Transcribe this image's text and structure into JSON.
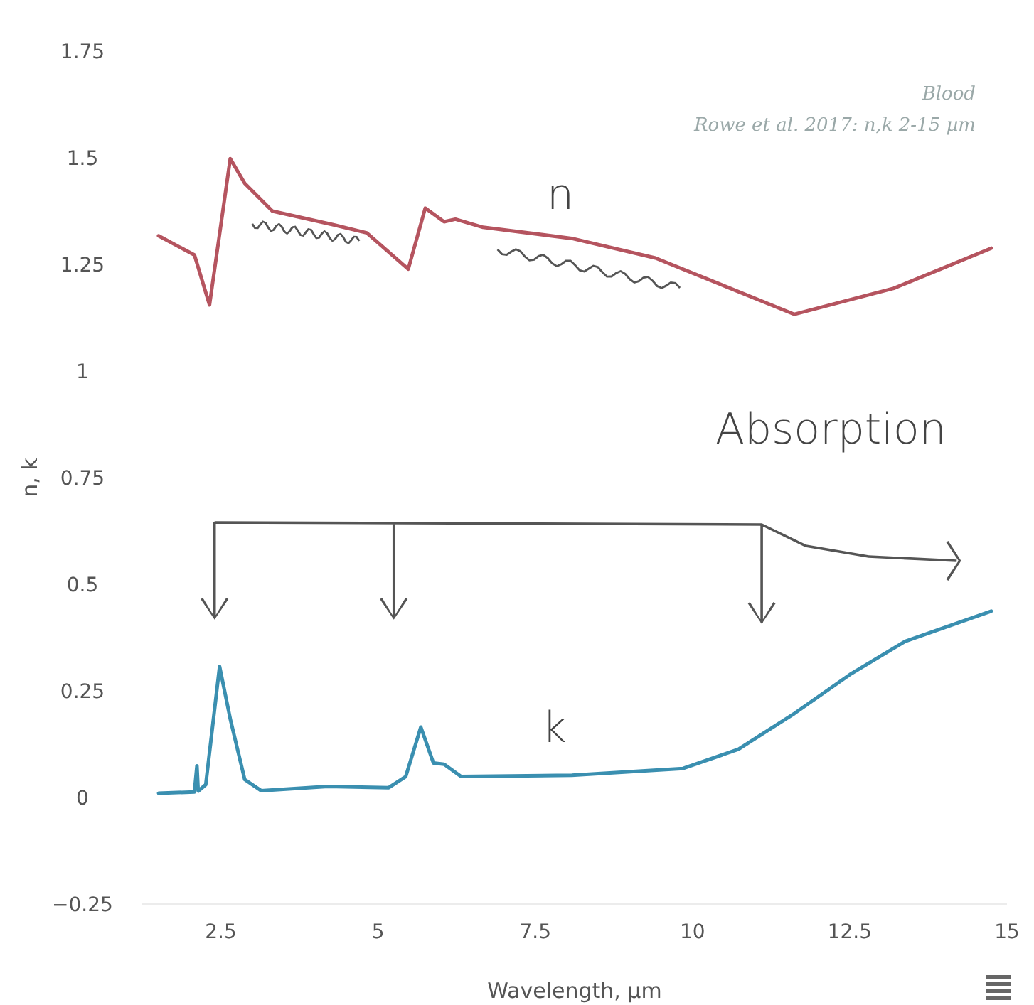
{
  "chart_data": {
    "type": "line",
    "xlabel": "Wavelength, µm",
    "ylabel": "n, k",
    "xlim": [
      1.25,
      15
    ],
    "ylim": [
      -0.25,
      1.75
    ],
    "xticks": [
      {
        "value": 2.5,
        "label": "2.5"
      },
      5,
      {
        "value": 7.5,
        "label": "7.5"
      },
      10,
      {
        "value": 12.5,
        "label": "12.5"
      },
      15
    ],
    "yticks": [
      {
        "value": -0.25,
        "label": "−0.25"
      },
      0,
      {
        "value": 0.25,
        "label": "0.25"
      },
      {
        "value": 0.5,
        "label": "0.5"
      },
      {
        "value": 0.75,
        "label": "0.75"
      },
      1,
      {
        "value": 1.25,
        "label": "1.25"
      },
      {
        "value": 1.5,
        "label": "1.5"
      },
      {
        "value": 1.75,
        "label": "1.75"
      }
    ],
    "grid": false,
    "marker": "none",
    "line_style": "solid",
    "series": [
      {
        "color": "#b5545f",
        "x": [
          1.51,
          2.08,
          2.32,
          2.65,
          2.88,
          3.32,
          4.29,
          4.82,
          5.48,
          5.75,
          6.05,
          6.23,
          6.67,
          8.08,
          9.41,
          11.62,
          13.2,
          14.75
        ],
        "values": [
          1.317,
          1.272,
          1.155,
          1.498,
          1.44,
          1.375,
          1.343,
          1.324,
          1.239,
          1.382,
          1.35,
          1.356,
          1.337,
          1.311,
          1.265,
          1.133,
          1.194,
          1.288
        ]
      },
      {
        "color": "#3a8fb0",
        "x": [
          1.51,
          2.08,
          2.12,
          2.14,
          2.26,
          2.48,
          2.65,
          2.88,
          3.14,
          4.2,
          5.17,
          5.44,
          5.68,
          5.88,
          6.05,
          6.32,
          8.08,
          9.85,
          10.73,
          11.62,
          12.5,
          13.38,
          14.75
        ],
        "values": [
          0.01,
          0.013,
          0.074,
          0.015,
          0.03,
          0.307,
          0.184,
          0.042,
          0.016,
          0.026,
          0.023,
          0.049,
          0.165,
          0.081,
          0.078,
          0.049,
          0.052,
          0.068,
          0.113,
          0.197,
          0.288,
          0.366,
          0.437
        ]
      }
    ],
    "annotations": [
      "Blood",
      "Rowe et al. 2017: n,k 2-15 µm",
      "n",
      "k",
      "Absorption"
    ]
  }
}
